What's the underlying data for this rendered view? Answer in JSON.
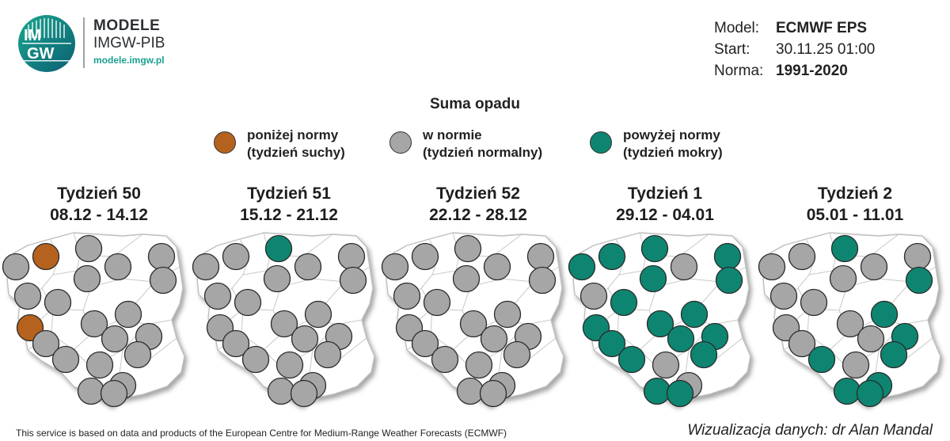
{
  "header": {
    "logo_text_top": "IM",
    "logo_text_bottom": "GW",
    "brand_title": "MODELE",
    "brand_subtitle": "IMGW-PIB",
    "brand_url": "modele.imgw.pl"
  },
  "info": {
    "model_label": "Model:",
    "model_value": "ECMWF EPS",
    "start_label": "Start:",
    "start_value": "30.11.25 01:00",
    "norm_label": "Norma:",
    "norm_value": "1991-2020"
  },
  "legend": {
    "title": "Suma opadu",
    "items": [
      {
        "line1": "poniżej normy",
        "line2": "(tydzień suchy)",
        "color": "#b5621e"
      },
      {
        "line1": "w normie",
        "line2": "(tydzień normalny)",
        "color": "#a6a6a6"
      },
      {
        "line1": "powyżej normy",
        "line2": "(tydzień mokry)",
        "color": "#0e8571"
      }
    ]
  },
  "colors": {
    "dry": "#b5621e",
    "normal": "#a6a6a6",
    "wet": "#0e8571"
  },
  "weeks": [
    {
      "title": "Tydzień 50",
      "dates": "08.12 - 14.12",
      "regions": [
        "normal",
        "dry",
        "normal",
        "normal",
        "normal",
        "normal",
        "normal",
        "normal",
        "normal",
        "dry",
        "normal",
        "normal",
        "normal",
        "normal",
        "normal",
        "normal",
        "normal",
        "normal",
        "normal",
        "normal",
        "normal"
      ]
    },
    {
      "title": "Tydzień 51",
      "dates": "15.12 - 21.12",
      "regions": [
        "normal",
        "normal",
        "wet",
        "normal",
        "normal",
        "normal",
        "normal",
        "normal",
        "normal",
        "normal",
        "normal",
        "normal",
        "normal",
        "normal",
        "normal",
        "normal",
        "normal",
        "normal",
        "normal",
        "normal",
        "normal"
      ]
    },
    {
      "title": "Tydzień 52",
      "dates": "22.12 - 28.12",
      "regions": [
        "normal",
        "normal",
        "normal",
        "normal",
        "normal",
        "normal",
        "normal",
        "normal",
        "normal",
        "normal",
        "normal",
        "normal",
        "normal",
        "normal",
        "normal",
        "normal",
        "normal",
        "normal",
        "normal",
        "normal",
        "normal"
      ]
    },
    {
      "title": "Tydzień 1",
      "dates": "29.12 - 04.01",
      "regions": [
        "wet",
        "wet",
        "wet",
        "normal",
        "wet",
        "normal",
        "wet",
        "wet",
        "wet",
        "wet",
        "wet",
        "wet",
        "wet",
        "wet",
        "wet",
        "wet",
        "normal",
        "wet",
        "wet",
        "normal",
        "wet"
      ]
    },
    {
      "title": "Tydzień 2",
      "dates": "05.01 - 11.01",
      "regions": [
        "normal",
        "normal",
        "wet",
        "normal",
        "normal",
        "normal",
        "normal",
        "wet",
        "normal",
        "normal",
        "normal",
        "wet",
        "normal",
        "normal",
        "wet",
        "wet",
        "normal",
        "wet",
        "wet",
        "wet",
        "wet"
      ]
    }
  ],
  "footer": {
    "source": "This service is based on data and products of the European Centre for Medium-Range Weather Forecasts (ECMWF)",
    "credit": "Wizualizacja danych: dr Alan Mandal"
  }
}
